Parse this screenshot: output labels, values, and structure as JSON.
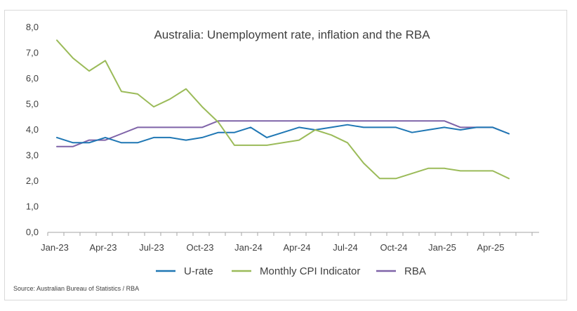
{
  "chart_data": {
    "type": "line",
    "title": "Australia: Unemployment rate, inflation and the RBA",
    "xlabel": "",
    "ylabel": "",
    "ylim": [
      0,
      8
    ],
    "yticks": [
      "0,0",
      "1,0",
      "2,0",
      "3,0",
      "4,0",
      "5,0",
      "6,0",
      "7,0",
      "8,0"
    ],
    "ytick_values": [
      0,
      1,
      2,
      3,
      4,
      5,
      6,
      7,
      8
    ],
    "x_start": "Jan-23",
    "months": 30,
    "xticks": [
      {
        "label": "Jan-23",
        "month": 0
      },
      {
        "label": "Apr-23",
        "month": 3
      },
      {
        "label": "Jul-23",
        "month": 6
      },
      {
        "label": "Oct-23",
        "month": 9
      },
      {
        "label": "Jan-24",
        "month": 12
      },
      {
        "label": "Apr-24",
        "month": 15
      },
      {
        "label": "Jul-24",
        "month": 18
      },
      {
        "label": "Oct-24",
        "month": 21
      },
      {
        "label": "Jan-25",
        "month": 24
      },
      {
        "label": "Apr-25",
        "month": 27
      }
    ],
    "series": [
      {
        "name": "U-rate",
        "color": "#1f77b4",
        "values": [
          3.7,
          3.5,
          3.5,
          3.7,
          3.5,
          3.5,
          3.7,
          3.7,
          3.6,
          3.7,
          3.9,
          3.9,
          4.1,
          3.7,
          3.9,
          4.1,
          4.0,
          4.1,
          4.2,
          4.1,
          4.1,
          4.1,
          3.9,
          4.0,
          4.1,
          4.0,
          4.1,
          4.1,
          3.85
        ]
      },
      {
        "name": "Monthly CPI Indicator",
        "color": "#9bbb59",
        "values": [
          7.5,
          6.8,
          6.3,
          6.7,
          5.5,
          5.4,
          4.9,
          5.2,
          5.6,
          4.9,
          4.3,
          3.4,
          3.4,
          3.4,
          3.5,
          3.6,
          4.0,
          3.8,
          3.5,
          2.7,
          2.1,
          2.1,
          2.3,
          2.5,
          2.5,
          2.4,
          2.4,
          2.4,
          2.1
        ]
      },
      {
        "name": "RBA",
        "color": "#7f63a8",
        "values": [
          3.35,
          3.35,
          3.6,
          3.6,
          3.85,
          4.1,
          4.1,
          4.1,
          4.1,
          4.1,
          4.35,
          4.35,
          4.35,
          4.35,
          4.35,
          4.35,
          4.35,
          4.35,
          4.35,
          4.35,
          4.35,
          4.35,
          4.35,
          4.35,
          4.35,
          4.1,
          4.1,
          4.1,
          3.85
        ]
      }
    ],
    "legend": [
      "U-rate",
      "Monthly CPI Indicator",
      "RBA"
    ],
    "legend_position": "bottom",
    "grid": false,
    "source": "Source: Australian Bureau of Statistics / RBA"
  }
}
